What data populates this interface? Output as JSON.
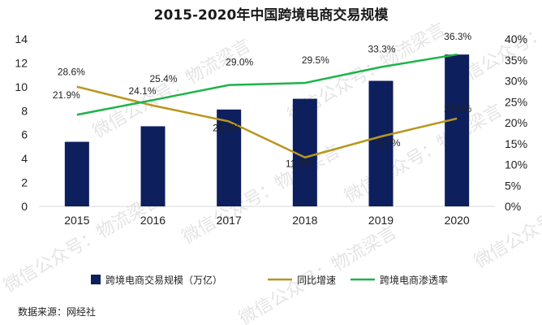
{
  "chart_data": {
    "type": "bar",
    "title": "2015-2020年中国跨境电商交易规模",
    "categories": [
      "2015",
      "2016",
      "2017",
      "2018",
      "2019",
      "2020"
    ],
    "ylim": [
      0,
      14
    ],
    "y_ticks": [
      "0",
      "2",
      "4",
      "6",
      "8",
      "10",
      "12",
      "14"
    ],
    "y2lim": [
      0,
      40
    ],
    "y2_ticks": [
      "0%",
      "5%",
      "10%",
      "15%",
      "20%",
      "25%",
      "30%",
      "35%",
      "40%"
    ],
    "grid": false,
    "legend_position": "bottom",
    "series": [
      {
        "name": "跨境电商交易规模（万亿）",
        "type": "bar",
        "axis": "left",
        "color": "#0d1f5c",
        "values": [
          5.4,
          6.7,
          8.1,
          9.0,
          10.5,
          12.7
        ]
      },
      {
        "name": "同比增速",
        "type": "line",
        "axis": "right",
        "color": "#b8961e",
        "values": [
          28.6,
          24.1,
          20.3,
          11.7,
          16.7,
          21.0
        ],
        "labels": [
          "28.6%",
          "24.1%",
          "20.3%",
          "11.7%",
          "16.7%",
          "21.0%"
        ]
      },
      {
        "name": "跨境电商渗透率",
        "type": "line",
        "axis": "right",
        "color": "#1db34a",
        "values": [
          21.9,
          25.4,
          29.0,
          29.5,
          33.3,
          36.3
        ],
        "labels": [
          "21.9%",
          "25.4%",
          "29.0%",
          "29.5%",
          "33.3%",
          "36.3%"
        ]
      }
    ]
  },
  "source": "数据来源：网经社",
  "watermark": "微信公众号：物流梁言"
}
